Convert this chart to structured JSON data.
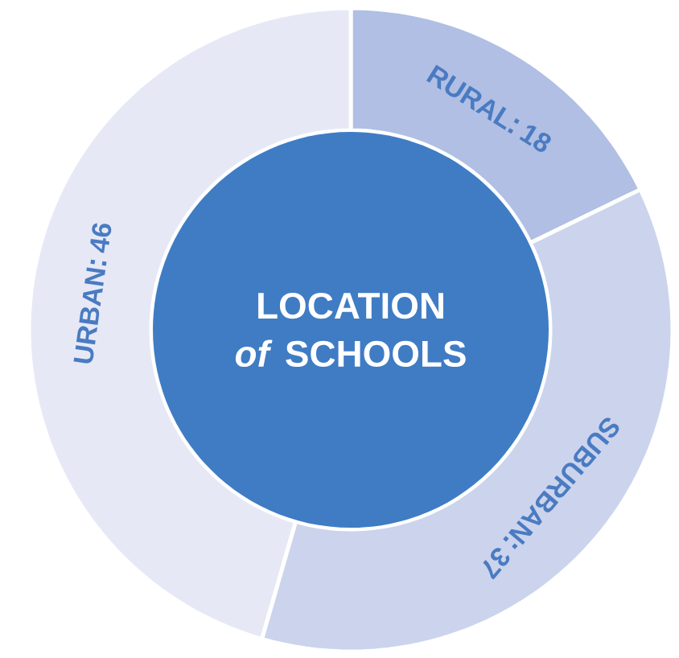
{
  "chart_data": {
    "type": "donut",
    "title": "LOCATION *of* SCHOOLS",
    "categories": [
      "RURAL",
      "SUBURBAN",
      "URBAN"
    ],
    "values": [
      18,
      37,
      46
    ],
    "colors": [
      "#b0bfe3",
      "#cbd4ec",
      "#e6e9f5"
    ],
    "data_labels": true
  }
}
